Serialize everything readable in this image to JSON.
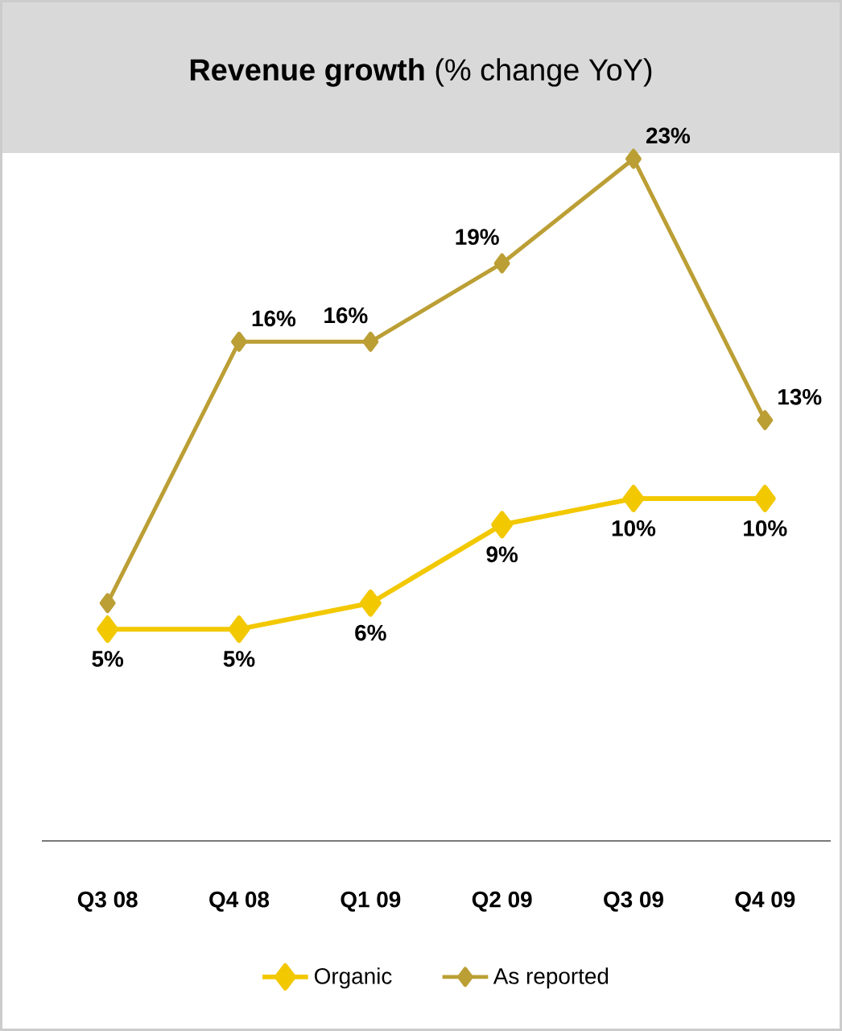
{
  "chart_data": {
    "type": "line",
    "title": "**Revenue growth** (% change YoY)",
    "categories": [
      "Q3 08",
      "Q4 08",
      "Q1 09",
      "Q2 09",
      "Q3 09",
      "Q4 09"
    ],
    "tick_labels": "x",
    "marker": "diamond",
    "legend": "bottom",
    "series": [
      {
        "name": "Organic",
        "color": "#f2c800",
        "values": [
          5,
          5,
          6,
          9,
          10,
          10
        ],
        "value_labels": [
          "5%",
          "5%",
          "6%",
          "9%",
          "10%",
          "10%"
        ]
      },
      {
        "name": "As reported",
        "color": "#bb9f35",
        "values": [
          6,
          16,
          16,
          19,
          23,
          13
        ],
        "value_labels": [
          null,
          "16%",
          "16%",
          "19%",
          "23%",
          "13%"
        ]
      }
    ]
  }
}
